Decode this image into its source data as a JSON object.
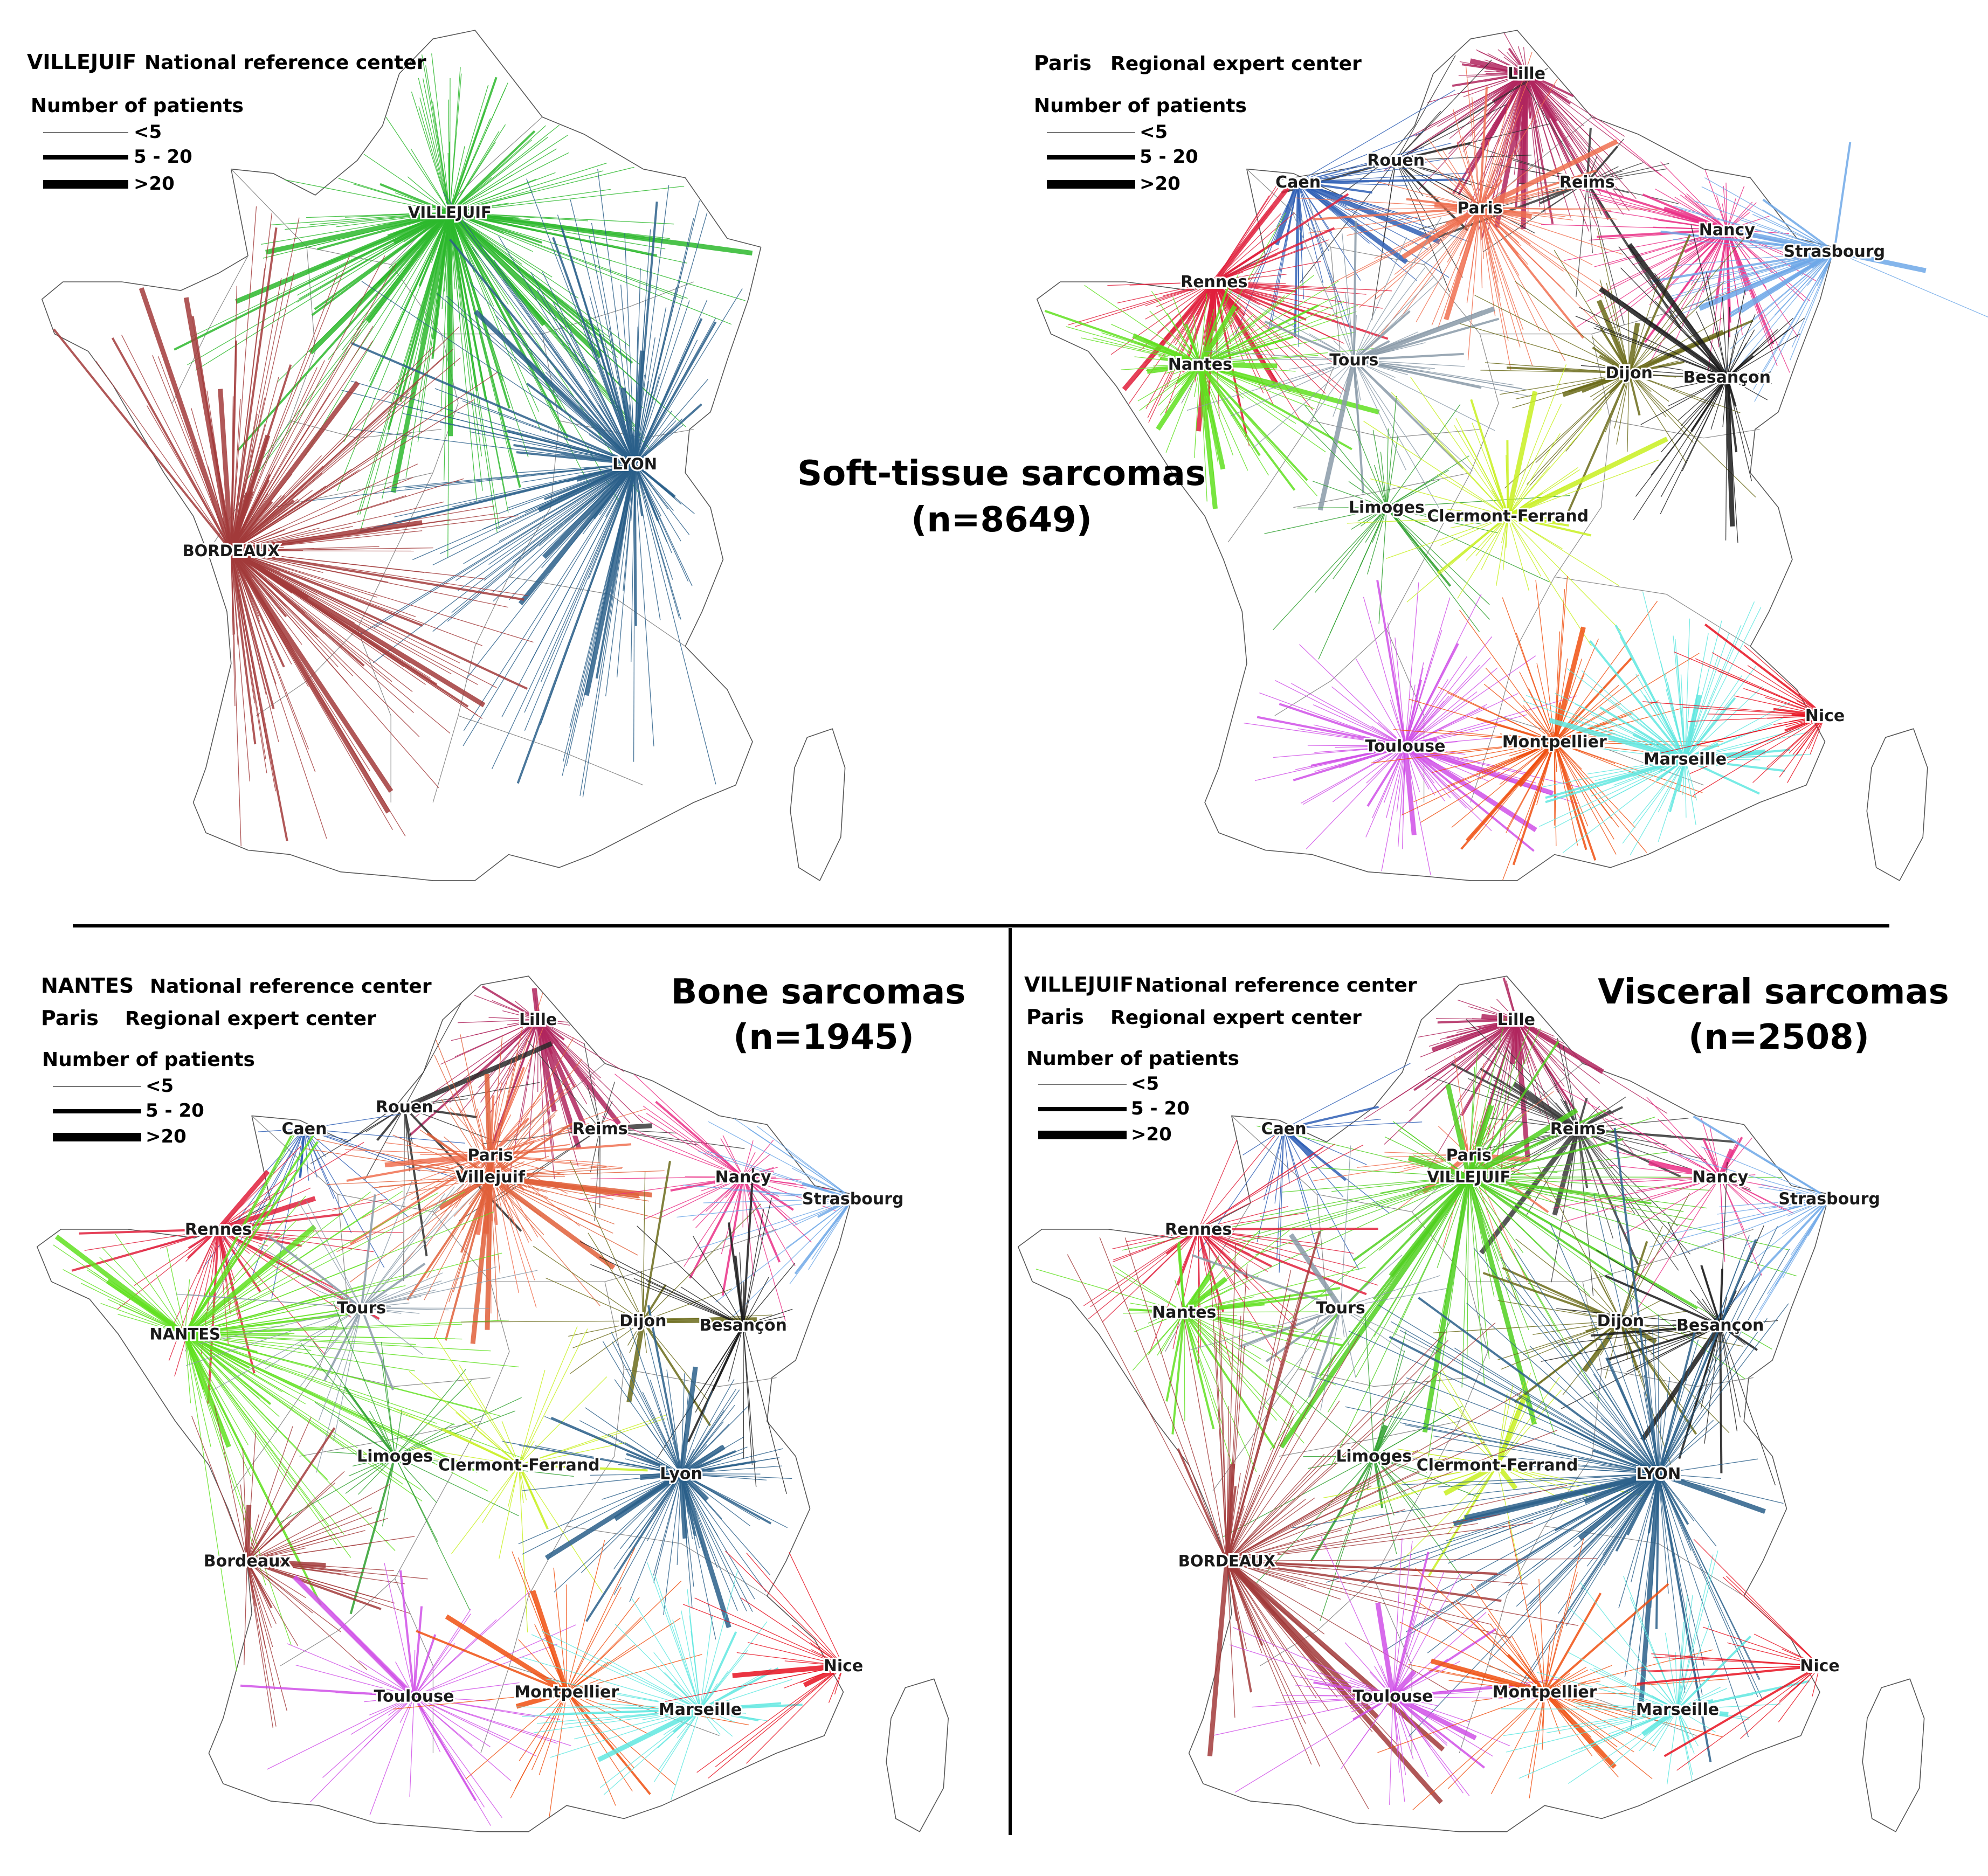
{
  "divider": {
    "color": "#000000"
  },
  "panels": [
    {
      "id": "soft-tissue",
      "title_line1": "Soft-tissue sarcomas",
      "title_line2": "(n=8649)",
      "legend": {
        "centers": [
          {
            "city": "VILLEJUIF",
            "label": "National reference center"
          }
        ],
        "patients_title": "Number of patients",
        "levels": [
          "<5",
          "5 - 20",
          ">20"
        ]
      },
      "hubs": [
        {
          "name": "VILLEJUIF",
          "color": "#2db82d",
          "rays": 220,
          "caps": true
        },
        {
          "name": "LYON",
          "color": "#2a5f8a",
          "rays": 200,
          "caps": true
        },
        {
          "name": "BORDEAUX",
          "color": "#a23b3b",
          "rays": 190,
          "caps": true
        }
      ]
    },
    {
      "id": "regional",
      "legend": {
        "centers": [
          {
            "city": "Paris",
            "label": "Regional expert center"
          }
        ],
        "patients_title": "Number of patients",
        "levels": [
          "<5",
          "5 - 20",
          ">20"
        ]
      },
      "hubs": [
        {
          "name": "Lille",
          "color": "#b0265e",
          "rays": 130
        },
        {
          "name": "Rouen",
          "color": "#2a2a2a",
          "rays": 26
        },
        {
          "name": "Caen",
          "color": "#2f5fb5",
          "rays": 50
        },
        {
          "name": "Reims",
          "color": "#3a3a3a",
          "rays": 30
        },
        {
          "name": "Paris",
          "color": "#f07050",
          "rays": 110
        },
        {
          "name": "Nancy",
          "color": "#ea2f86",
          "rays": 90
        },
        {
          "name": "Strasbourg",
          "color": "#6fa8e8",
          "rays": 60
        },
        {
          "name": "Rennes",
          "color": "#e0203c",
          "rays": 110
        },
        {
          "name": "Nantes",
          "color": "#60e020",
          "rays": 110
        },
        {
          "name": "Tours",
          "color": "#8a9aa8",
          "rays": 60
        },
        {
          "name": "Dijon",
          "color": "#6b6b1a",
          "rays": 60
        },
        {
          "name": "Besançon",
          "color": "#1a1a1a",
          "rays": 60
        },
        {
          "name": "Limoges",
          "color": "#2ea02e",
          "rays": 40
        },
        {
          "name": "Clermont-Ferrand",
          "color": "#c8f020",
          "rays": 60
        },
        {
          "name": "Toulouse",
          "color": "#d050e8",
          "rays": 110
        },
        {
          "name": "Montpellier",
          "color": "#f05010",
          "rays": 90
        },
        {
          "name": "Marseille",
          "color": "#60e8e0",
          "rays": 100
        },
        {
          "name": "Nice",
          "color": "#e81020",
          "rays": 40
        }
      ]
    },
    {
      "id": "bone",
      "title_line1": "Bone sarcomas",
      "title_line2": "(n=1945)",
      "legend": {
        "centers": [
          {
            "city": "NANTES",
            "label": "National reference center"
          },
          {
            "city": "Paris",
            "label": "Regional expert center"
          }
        ],
        "patients_title": "Number of patients",
        "levels": [
          "<5",
          "5 - 20",
          ">20"
        ]
      },
      "hubs": [
        {
          "name": "Lille",
          "color": "#b0265e",
          "rays": 60
        },
        {
          "name": "Rouen",
          "color": "#2a2a2a",
          "rays": 16
        },
        {
          "name": "Caen",
          "color": "#2f5fb5",
          "rays": 22
        },
        {
          "name": "Reims",
          "color": "#3a3a3a",
          "rays": 16
        },
        {
          "name": "Paris",
          "color": "#f07050",
          "rays": 60
        },
        {
          "name": "Villejuif",
          "color": "#e0603a",
          "rays": 90
        },
        {
          "name": "Nancy",
          "color": "#ea2f86",
          "rays": 50
        },
        {
          "name": "Strasbourg",
          "color": "#6fa8e8",
          "rays": 30
        },
        {
          "name": "Rennes",
          "color": "#e0203c",
          "rays": 50
        },
        {
          "name": "NANTES",
          "color": "#60e020",
          "rays": 110,
          "caps": true
        },
        {
          "name": "Tours",
          "color": "#8a9aa8",
          "rays": 40
        },
        {
          "name": "Dijon",
          "color": "#6b6b1a",
          "rays": 24
        },
        {
          "name": "Besançon",
          "color": "#1a1a1a",
          "rays": 30
        },
        {
          "name": "Limoges",
          "color": "#2ea02e",
          "rays": 30
        },
        {
          "name": "Clermont-Ferrand",
          "color": "#c8f020",
          "rays": 30
        },
        {
          "name": "Lyon",
          "color": "#2a5f8a",
          "rays": 110
        },
        {
          "name": "Bordeaux",
          "color": "#a23b3b",
          "rays": 60
        },
        {
          "name": "Toulouse",
          "color": "#d050e8",
          "rays": 50
        },
        {
          "name": "Montpellier",
          "color": "#f05010",
          "rays": 40
        },
        {
          "name": "Marseille",
          "color": "#60e8e0",
          "rays": 60
        },
        {
          "name": "Nice",
          "color": "#e81020",
          "rays": 24
        }
      ]
    },
    {
      "id": "visceral",
      "title_line1": "Visceral sarcomas",
      "title_line2": "(n=2508)",
      "legend": {
        "centers": [
          {
            "city": "VILLEJUIF",
            "label": "National reference center"
          },
          {
            "city": "Paris",
            "label": "Regional expert center"
          }
        ],
        "patients_title": "Number of patients",
        "levels": [
          "<5",
          "5 - 20",
          ">20"
        ]
      },
      "hubs": [
        {
          "name": "Lille",
          "color": "#b0265e",
          "rays": 80
        },
        {
          "name": "Caen",
          "color": "#2f5fb5",
          "rays": 20
        },
        {
          "name": "Reims",
          "color": "#3a3a3a",
          "rays": 60
        },
        {
          "name": "Paris",
          "color": "#f07050",
          "rays": 30
        },
        {
          "name": "VILLEJUIF",
          "color": "#50d020",
          "rays": 100,
          "caps": true
        },
        {
          "name": "Nancy",
          "color": "#ea2f86",
          "rays": 40
        },
        {
          "name": "Strasbourg",
          "color": "#6fa8e8",
          "rays": 30
        },
        {
          "name": "Rennes",
          "color": "#e0203c",
          "rays": 50
        },
        {
          "name": "Nantes",
          "color": "#60e020",
          "rays": 60
        },
        {
          "name": "Tours",
          "color": "#8a9aa8",
          "rays": 20
        },
        {
          "name": "Dijon",
          "color": "#6b6b1a",
          "rays": 40
        },
        {
          "name": "Besançon",
          "color": "#1a1a1a",
          "rays": 40
        },
        {
          "name": "Limoges",
          "color": "#2ea02e",
          "rays": 30
        },
        {
          "name": "Clermont-Ferrand",
          "color": "#c8f020",
          "rays": 30
        },
        {
          "name": "LYON",
          "color": "#2a5f8a",
          "rays": 140,
          "caps": true
        },
        {
          "name": "BORDEAUX",
          "color": "#a23b3b",
          "rays": 90,
          "caps": true
        },
        {
          "name": "Toulouse",
          "color": "#d050e8",
          "rays": 60
        },
        {
          "name": "Montpellier",
          "color": "#f05010",
          "rays": 60
        },
        {
          "name": "Marseille",
          "color": "#60e8e0",
          "rays": 60
        },
        {
          "name": "Nice",
          "color": "#e81020",
          "rays": 20
        }
      ]
    }
  ]
}
